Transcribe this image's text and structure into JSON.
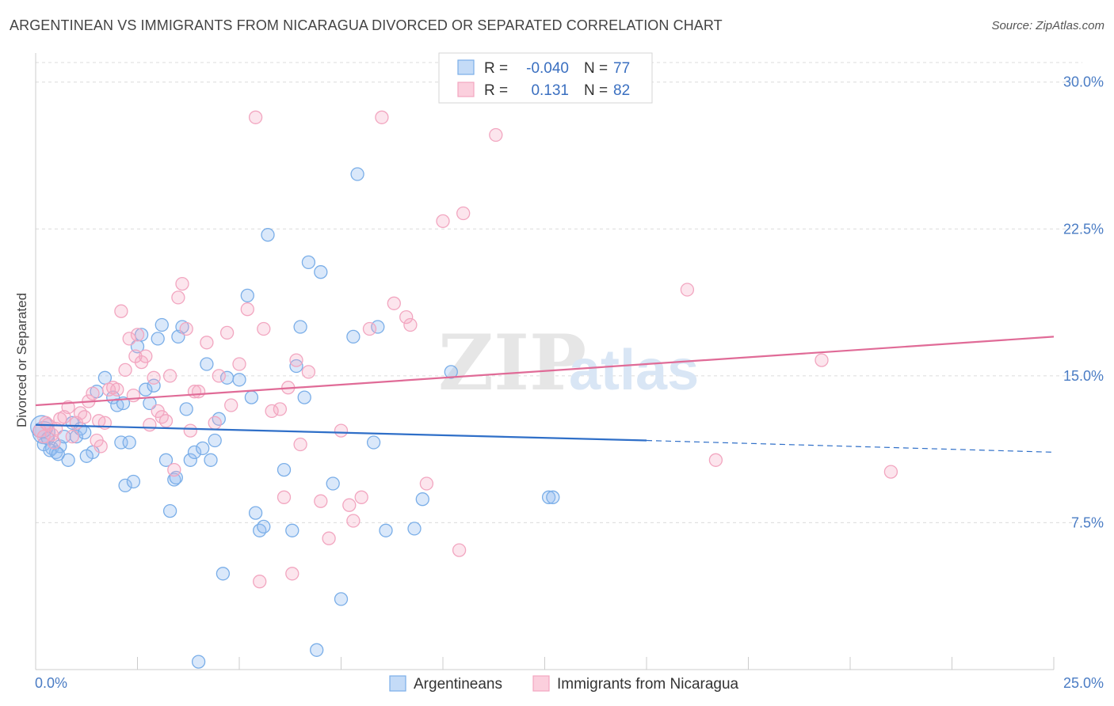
{
  "chart_data": {
    "type": "scatter",
    "title": "ARGENTINEAN VS IMMIGRANTS FROM NICARAGUA DIVORCED OR SEPARATED CORRELATION CHART",
    "source": "Source: ZipAtlas.com",
    "ylabel": "Divorced or Separated",
    "xlabel": "",
    "xlim": [
      0,
      25
    ],
    "ylim": [
      0,
      31
    ],
    "x_tick_labels": [
      "0.0%",
      "25.0%"
    ],
    "y_ticks": [
      7.5,
      15.0,
      22.5,
      30.0
    ],
    "y_tick_labels": [
      "7.5%",
      "15.0%",
      "22.5%",
      "30.0%"
    ],
    "grid": true,
    "legend_position": "top-center",
    "watermark": {
      "zip": "ZIP",
      "atlas": "atlas"
    },
    "legend_box": [
      {
        "r_label": "R =",
        "r_value": "-0.040",
        "n_label": "N =",
        "n_value": "77"
      },
      {
        "r_label": "R =",
        "r_value": "0.131",
        "n_label": "N =",
        "n_value": "82"
      }
    ],
    "series": [
      {
        "name": "Argentineans",
        "color": "#7aaee8",
        "trend": {
          "x0": 0,
          "y0": 12.5,
          "x1": 15,
          "y1": 11.7,
          "dash_to_x": 25,
          "dash_to_y": 11.1
        },
        "points": [
          [
            0.2,
            12.1
          ],
          [
            0.2,
            11.5
          ],
          [
            0.3,
            11.8
          ],
          [
            0.4,
            11.3
          ],
          [
            0.5,
            11.1
          ],
          [
            0.6,
            11.4
          ],
          [
            0.7,
            11.9
          ],
          [
            0.8,
            10.7
          ],
          [
            0.9,
            12.6
          ],
          [
            1.0,
            11.9
          ],
          [
            1.1,
            12.3
          ],
          [
            1.2,
            12.1
          ],
          [
            1.4,
            11.1
          ],
          [
            1.5,
            14.2
          ],
          [
            1.7,
            14.9
          ],
          [
            1.9,
            13.9
          ],
          [
            2.0,
            13.5
          ],
          [
            2.1,
            11.6
          ],
          [
            2.2,
            9.4
          ],
          [
            2.3,
            11.6
          ],
          [
            2.4,
            9.6
          ],
          [
            2.5,
            16.5
          ],
          [
            2.6,
            17.1
          ],
          [
            2.7,
            14.3
          ],
          [
            2.8,
            13.6
          ],
          [
            2.9,
            14.5
          ],
          [
            3.0,
            16.9
          ],
          [
            3.1,
            17.6
          ],
          [
            3.2,
            10.7
          ],
          [
            3.3,
            8.1
          ],
          [
            3.4,
            9.7
          ],
          [
            3.5,
            17.0
          ],
          [
            3.6,
            17.5
          ],
          [
            3.7,
            13.3
          ],
          [
            3.8,
            10.7
          ],
          [
            3.9,
            11.1
          ],
          [
            4.0,
            0.4
          ],
          [
            4.1,
            11.3
          ],
          [
            4.2,
            15.6
          ],
          [
            4.3,
            10.7
          ],
          [
            4.4,
            11.7
          ],
          [
            4.5,
            12.8
          ],
          [
            4.6,
            4.9
          ],
          [
            4.7,
            14.9
          ],
          [
            5.0,
            14.8
          ],
          [
            5.2,
            19.1
          ],
          [
            5.3,
            13.9
          ],
          [
            5.4,
            8.0
          ],
          [
            5.5,
            7.1
          ],
          [
            5.6,
            7.3
          ],
          [
            5.7,
            22.2
          ],
          [
            6.1,
            10.2
          ],
          [
            6.3,
            7.1
          ],
          [
            6.4,
            15.5
          ],
          [
            6.5,
            17.5
          ],
          [
            6.6,
            13.9
          ],
          [
            6.7,
            20.8
          ],
          [
            6.9,
            1.0
          ],
          [
            7.0,
            20.3
          ],
          [
            7.3,
            9.5
          ],
          [
            7.5,
            3.6
          ],
          [
            7.8,
            17.0
          ],
          [
            7.9,
            25.3
          ],
          [
            8.3,
            11.6
          ],
          [
            8.4,
            17.5
          ],
          [
            8.6,
            7.1
          ],
          [
            9.3,
            7.2
          ],
          [
            9.5,
            8.7
          ],
          [
            10.2,
            15.2
          ],
          [
            12.6,
            8.8
          ],
          [
            12.7,
            8.8
          ],
          [
            0.15,
            12.4
          ],
          [
            0.35,
            11.2
          ],
          [
            0.55,
            11.0
          ],
          [
            1.25,
            10.9
          ],
          [
            2.15,
            13.6
          ],
          [
            3.45,
            9.8
          ]
        ]
      },
      {
        "name": "Immigrants from Nicaragua",
        "color": "#f2a6c0",
        "trend": {
          "x0": 0,
          "y0": 13.5,
          "x1": 25,
          "y1": 17.0
        },
        "points": [
          [
            0.1,
            12.2
          ],
          [
            0.2,
            11.9
          ],
          [
            0.3,
            12.5
          ],
          [
            0.4,
            12.0
          ],
          [
            0.5,
            12.3
          ],
          [
            0.6,
            12.8
          ],
          [
            0.7,
            12.9
          ],
          [
            0.8,
            13.4
          ],
          [
            0.9,
            11.9
          ],
          [
            1.0,
            12.6
          ],
          [
            1.1,
            13.1
          ],
          [
            1.2,
            12.9
          ],
          [
            1.3,
            13.7
          ],
          [
            1.4,
            14.1
          ],
          [
            1.5,
            11.7
          ],
          [
            1.6,
            11.4
          ],
          [
            1.7,
            12.6
          ],
          [
            1.8,
            14.3
          ],
          [
            1.9,
            14.4
          ],
          [
            2.0,
            14.3
          ],
          [
            2.1,
            18.3
          ],
          [
            2.2,
            15.3
          ],
          [
            2.3,
            16.9
          ],
          [
            2.4,
            14.0
          ],
          [
            2.5,
            17.1
          ],
          [
            2.6,
            15.7
          ],
          [
            2.7,
            16.0
          ],
          [
            2.8,
            12.5
          ],
          [
            2.9,
            14.9
          ],
          [
            3.0,
            13.2
          ],
          [
            3.1,
            12.9
          ],
          [
            3.2,
            12.7
          ],
          [
            3.3,
            15.0
          ],
          [
            3.4,
            10.2
          ],
          [
            3.5,
            19.0
          ],
          [
            3.6,
            19.7
          ],
          [
            3.7,
            17.4
          ],
          [
            3.8,
            12.2
          ],
          [
            3.9,
            14.2
          ],
          [
            4.0,
            14.2
          ],
          [
            4.2,
            16.7
          ],
          [
            4.4,
            12.6
          ],
          [
            4.5,
            15.0
          ],
          [
            4.7,
            17.2
          ],
          [
            4.8,
            13.5
          ],
          [
            5.0,
            15.6
          ],
          [
            5.2,
            18.4
          ],
          [
            5.4,
            28.2
          ],
          [
            5.5,
            4.5
          ],
          [
            5.6,
            17.4
          ],
          [
            5.8,
            13.2
          ],
          [
            6.0,
            13.3
          ],
          [
            6.1,
            8.8
          ],
          [
            6.2,
            14.4
          ],
          [
            6.3,
            4.9
          ],
          [
            6.4,
            15.8
          ],
          [
            6.5,
            11.5
          ],
          [
            6.7,
            15.2
          ],
          [
            7.0,
            8.6
          ],
          [
            7.2,
            6.7
          ],
          [
            7.5,
            12.2
          ],
          [
            7.7,
            8.4
          ],
          [
            7.8,
            7.6
          ],
          [
            8.0,
            8.8
          ],
          [
            8.2,
            17.4
          ],
          [
            8.5,
            28.2
          ],
          [
            8.8,
            18.7
          ],
          [
            9.1,
            18.0
          ],
          [
            9.2,
            17.6
          ],
          [
            9.6,
            9.5
          ],
          [
            10.0,
            22.9
          ],
          [
            10.4,
            6.1
          ],
          [
            10.5,
            23.3
          ],
          [
            11.3,
            27.3
          ],
          [
            16.0,
            19.4
          ],
          [
            16.7,
            10.7
          ],
          [
            19.3,
            15.8
          ],
          [
            21.0,
            10.1
          ],
          [
            0.25,
            12.6
          ],
          [
            0.45,
            11.6
          ],
          [
            1.55,
            12.7
          ],
          [
            2.45,
            16.0
          ]
        ]
      }
    ]
  },
  "bottom_legend": [
    {
      "label": "Argentineans"
    },
    {
      "label": "Immigrants from Nicaragua"
    }
  ]
}
